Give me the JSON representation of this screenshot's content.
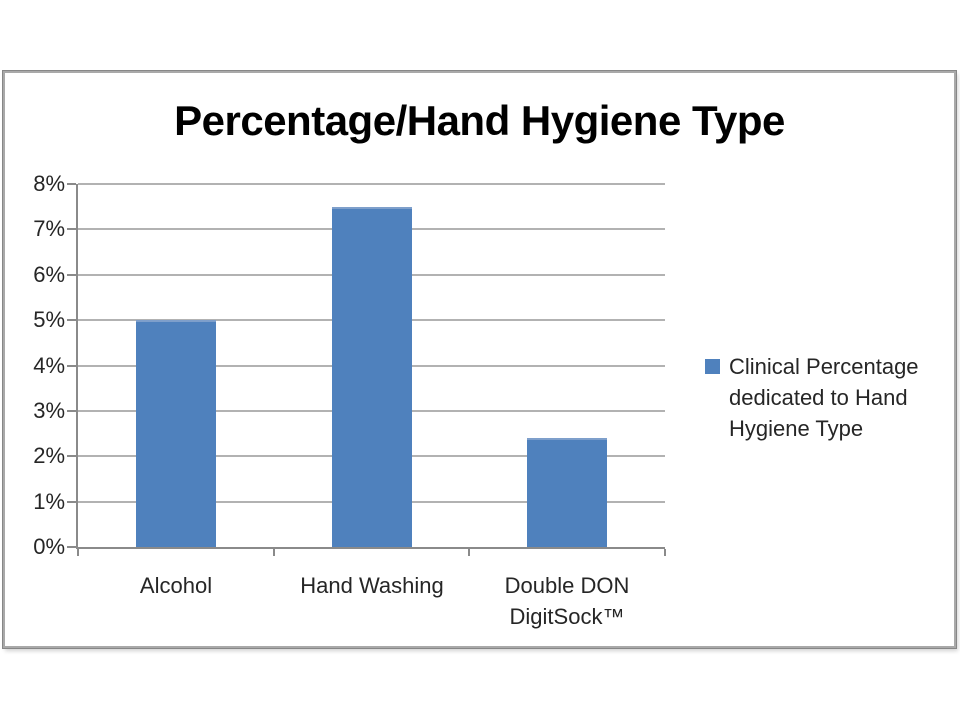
{
  "chart_data": {
    "type": "bar",
    "title": "Percentage/Hand Hygiene Type",
    "categories": [
      "Alcohol",
      "Hand Washing",
      "Double DON DigitSock™"
    ],
    "values": [
      5,
      7.5,
      2.4
    ],
    "value_unit": "%",
    "xlabel": "",
    "ylabel": "",
    "ylim": [
      0,
      8
    ],
    "ytick_labels": [
      "0%",
      "1%",
      "2%",
      "3%",
      "4%",
      "5%",
      "6%",
      "7%",
      "8%"
    ],
    "grid": "horizontal",
    "bar_color": "#4f81bd",
    "legend": {
      "position": "right",
      "entries": [
        {
          "label": "Clinical Percentage dedicated to Hand Hygiene Type",
          "color": "#4f81bd"
        }
      ]
    }
  },
  "styles": {
    "bar_fill": "#4f81bd",
    "bar_top_edge": "#7e9fcb",
    "gridline_color": "#b2b2b2",
    "axis_color": "#8a8a8a",
    "frame_border_color": "#a9a9a9",
    "frame_outline_color": "#878787",
    "title_color": "#000000",
    "label_text_color": "#262626",
    "background": "#ffffff"
  }
}
